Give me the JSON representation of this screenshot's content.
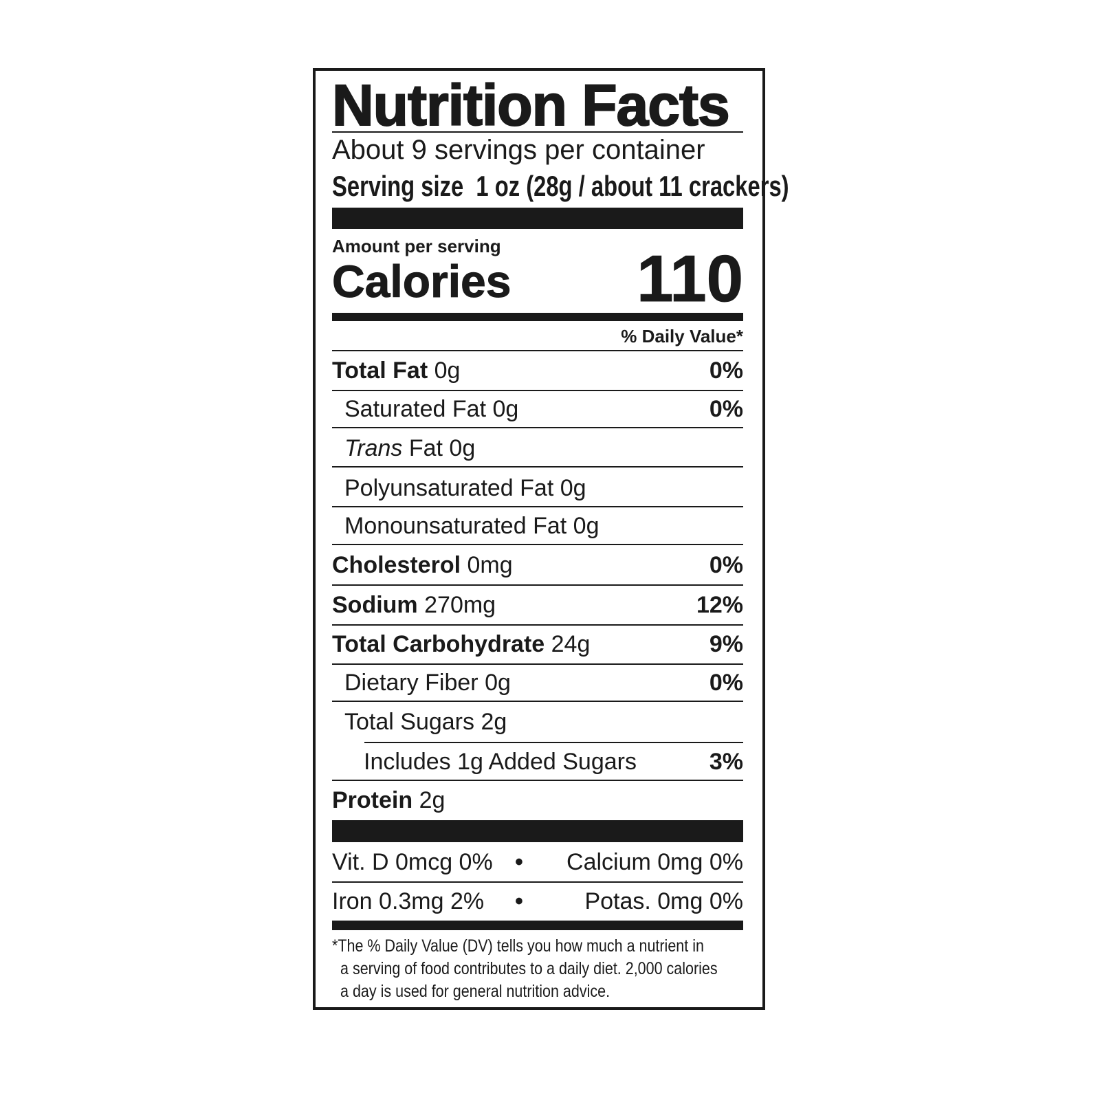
{
  "title": "Nutrition Facts",
  "servings_per_container": "About 9 servings per container",
  "serving_size": {
    "label": "Serving size",
    "value": "1 oz (28g / about 11 crackers)"
  },
  "amount_per_serving": "Amount per serving",
  "calories": {
    "label": "Calories",
    "value": "110"
  },
  "daily_value_header": "% Daily Value*",
  "nutrients": [
    {
      "name": "Total Fat",
      "amount": "0g",
      "dv": "0%"
    },
    {
      "name": "Saturated Fat",
      "amount": "0g",
      "dv": "0%"
    },
    {
      "name": "Trans",
      "name_rest": "Fat",
      "amount": "0g"
    },
    {
      "name": "Polyunsaturated Fat",
      "amount": "0g"
    },
    {
      "name": "Monounsaturated Fat",
      "amount": "0g"
    },
    {
      "name": "Cholesterol",
      "amount": "0mg",
      "dv": "0%"
    },
    {
      "name": "Sodium",
      "amount": "270mg",
      "dv": "12%"
    },
    {
      "name": "Total Carbohydrate",
      "amount": "24g",
      "dv": "9%"
    },
    {
      "name": "Dietary Fiber",
      "amount": "0g",
      "dv": "0%"
    },
    {
      "name": "Total Sugars",
      "amount": "2g"
    },
    {
      "name": "Includes 1g Added Sugars",
      "dv": "3%"
    },
    {
      "name": "Protein",
      "amount": "2g"
    }
  ],
  "vitamins": [
    {
      "left": "Vit. D 0mcg 0%",
      "right": "Calcium 0mg 0%"
    },
    {
      "left": "Iron 0.3mg 2%",
      "right": "Potas. 0mg 0%"
    }
  ],
  "bullet": "•",
  "footnote": [
    "*The % Daily Value (DV) tells you how much a nutrient in",
    "a serving of food contributes to a daily diet. 2,000 calories",
    "a day is used for general nutrition advice."
  ]
}
